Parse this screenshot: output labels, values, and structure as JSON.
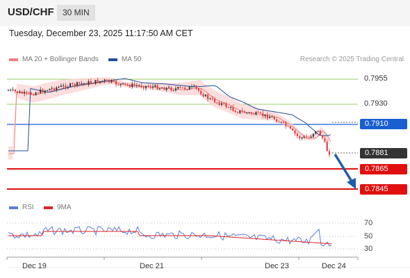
{
  "header": {
    "pair": "USD/CHF",
    "timeframe": "30 MIN"
  },
  "datetime": "Tuesday, December 23, 2025 11:17:50 AM CET",
  "legend": {
    "ma20": {
      "label": "MA 20 + Bollinger Bands",
      "color": "#f08080"
    },
    "ma50": {
      "label": "MA 50",
      "color": "#1f4e9c"
    },
    "credit": "Research © 2025 Trading Central"
  },
  "price_levels": [
    {
      "label": "0.7955",
      "style": "green-line"
    },
    {
      "label": "0.7930",
      "style": "green-line"
    },
    {
      "label": "0.7910",
      "style": "blue-box"
    },
    {
      "label": "0.7881",
      "style": "dark-box"
    },
    {
      "label": "0.7865",
      "style": "red-box"
    },
    {
      "label": "0.7845",
      "style": "red-box"
    }
  ],
  "rsi_legend": {
    "rsi": "RSI",
    "ma": "9MA",
    "rsi_color": "#5b7fd6",
    "ma_color": "#e02020"
  },
  "rsi_levels": [
    "70",
    "50",
    "30"
  ],
  "x_axis": [
    "Dec 19",
    "Dec 21",
    "Dec 23",
    "Dec 24"
  ],
  "colors": {
    "up": "#3a3a3a",
    "down": "#e04040",
    "green": "#8bc34a",
    "blue": "#1a5fd0",
    "red": "#e01010",
    "arrow": "#1f5cab"
  }
}
